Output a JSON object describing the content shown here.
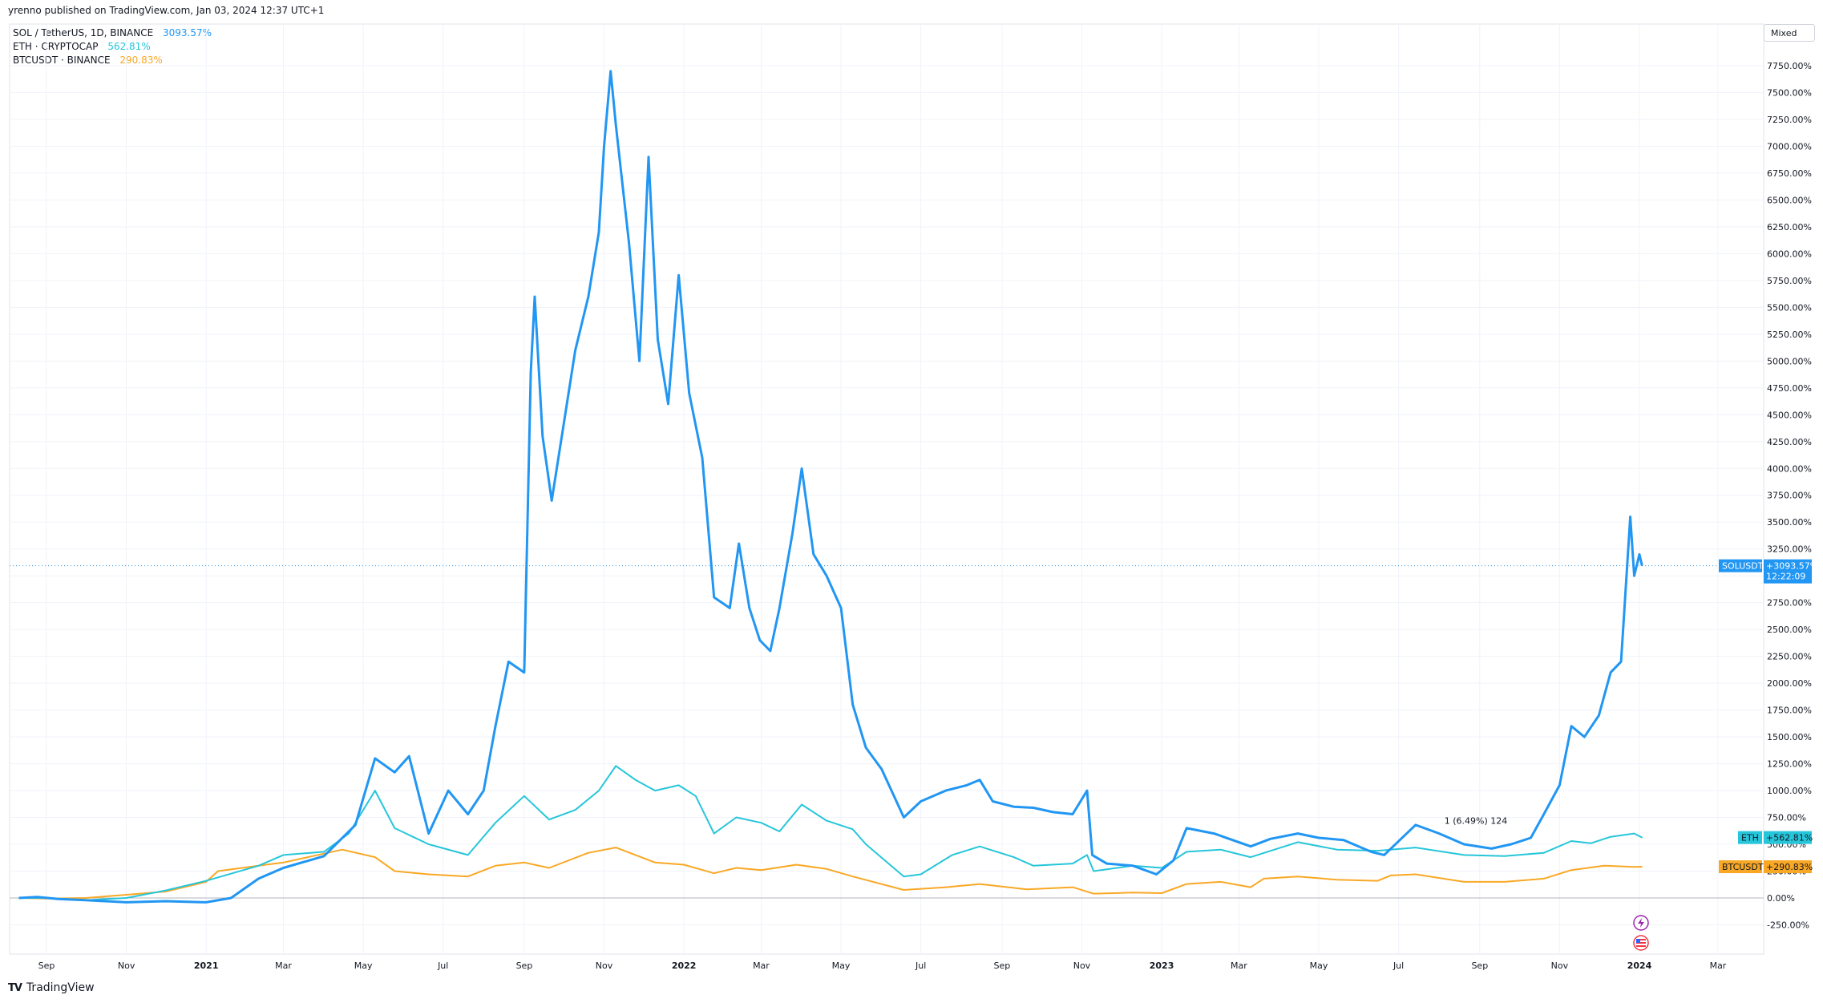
{
  "publisher_text": "yrenno published on TradingView.com, Jan 03, 2024 12:37 UTC+1",
  "scale_mode": "Mixed",
  "footer_brand": "TradingView",
  "legend": [
    {
      "name": "SOL / TetherUS, 1D, BINANCE",
      "value": "3093.57%",
      "color": "#2196f3"
    },
    {
      "name": "ETH · CRYPTOCAP",
      "value": "562.81%",
      "color": "#26c6da"
    },
    {
      "name": "BTCUSDT · BINANCE",
      "value": "290.83%",
      "color": "#f9a825"
    }
  ],
  "price_tags": {
    "sol": {
      "label": "SOLUSDT",
      "value": "+3093.57%",
      "countdown": "12:22:09",
      "color": "#2196f3"
    },
    "eth": {
      "label": "ETH",
      "value": "+562.81%",
      "color": "#26c6da"
    },
    "btc": {
      "label": "BTCUSDT",
      "value": "+290.83%",
      "color": "#f9a825"
    }
  },
  "annotation": "1 (6.49%) 124",
  "icons": [
    "lightning-icon",
    "us-flag-icon"
  ],
  "chart_data": {
    "type": "line",
    "title": "",
    "xlabel": "",
    "ylabel": "",
    "y_unit": "%",
    "ylim": [
      -500,
      7850
    ],
    "grid": true,
    "legend_position": "top-left",
    "x_tick_labels": [
      {
        "date": "2020-09-01",
        "label": "Sep"
      },
      {
        "date": "2020-11-01",
        "label": "Nov"
      },
      {
        "date": "2021-01-01",
        "label": "2021"
      },
      {
        "date": "2021-03-01",
        "label": "Mar"
      },
      {
        "date": "2021-05-01",
        "label": "May"
      },
      {
        "date": "2021-07-01",
        "label": "Jul"
      },
      {
        "date": "2021-09-01",
        "label": "Sep"
      },
      {
        "date": "2021-11-01",
        "label": "Nov"
      },
      {
        "date": "2022-01-01",
        "label": "2022"
      },
      {
        "date": "2022-03-01",
        "label": "Mar"
      },
      {
        "date": "2022-05-01",
        "label": "May"
      },
      {
        "date": "2022-07-01",
        "label": "Jul"
      },
      {
        "date": "2022-09-01",
        "label": "Sep"
      },
      {
        "date": "2022-11-01",
        "label": "Nov"
      },
      {
        "date": "2023-01-01",
        "label": "2023"
      },
      {
        "date": "2023-03-01",
        "label": "Mar"
      },
      {
        "date": "2023-05-01",
        "label": "May"
      },
      {
        "date": "2023-07-01",
        "label": "Jul"
      },
      {
        "date": "2023-09-01",
        "label": "Sep"
      },
      {
        "date": "2023-11-01",
        "label": "Nov"
      },
      {
        "date": "2024-01-01",
        "label": "2024"
      },
      {
        "date": "2024-03-01",
        "label": "Mar"
      }
    ],
    "y_ticks": [
      -250,
      0,
      250,
      500,
      750,
      1000,
      1250,
      1500,
      1750,
      2000,
      2250,
      2500,
      2750,
      3000,
      3250,
      3500,
      3750,
      4000,
      4250,
      4500,
      4750,
      5000,
      5250,
      5500,
      5750,
      6000,
      6250,
      6500,
      6750,
      7000,
      7250,
      7500,
      7750
    ],
    "y_tick_labels": [
      "-250.00%",
      "0.00%",
      "250.00%",
      "500.00%",
      "750.00%",
      "1000.00%",
      "1250.00%",
      "1500.00%",
      "1750.00%",
      "2000.00%",
      "2250.00%",
      "2500.00%",
      "2750.00%",
      "3000.00%",
      "3250.00%",
      "3500.00%",
      "3750.00%",
      "4000.00%",
      "4250.00%",
      "4500.00%",
      "4750.00%",
      "5000.00%",
      "5250.00%",
      "5500.00%",
      "5750.00%",
      "6000.00%",
      "6250.00%",
      "6500.00%",
      "6750.00%",
      "7000.00%",
      "7250.00%",
      "7500.00%",
      "7750.00%"
    ],
    "series": [
      {
        "name": "SOL / TetherUS, 1D, BINANCE",
        "color": "#2196f3",
        "points": [
          [
            "2020-08-11",
            0
          ],
          [
            "2020-08-25",
            10
          ],
          [
            "2020-09-10",
            -10
          ],
          [
            "2020-10-01",
            -20
          ],
          [
            "2020-11-01",
            -40
          ],
          [
            "2020-12-01",
            -30
          ],
          [
            "2021-01-01",
            -40
          ],
          [
            "2021-01-20",
            0
          ],
          [
            "2021-02-10",
            180
          ],
          [
            "2021-03-01",
            280
          ],
          [
            "2021-04-01",
            390
          ],
          [
            "2021-04-25",
            680
          ],
          [
            "2021-05-10",
            1300
          ],
          [
            "2021-05-25",
            1170
          ],
          [
            "2021-06-05",
            1320
          ],
          [
            "2021-06-20",
            600
          ],
          [
            "2021-07-05",
            1000
          ],
          [
            "2021-07-20",
            780
          ],
          [
            "2021-08-01",
            1000
          ],
          [
            "2021-08-10",
            1600
          ],
          [
            "2021-08-20",
            2200
          ],
          [
            "2021-09-01",
            2100
          ],
          [
            "2021-09-06",
            4900
          ],
          [
            "2021-09-09",
            5600
          ],
          [
            "2021-09-15",
            4300
          ],
          [
            "2021-09-22",
            3700
          ],
          [
            "2021-10-01",
            4400
          ],
          [
            "2021-10-10",
            5100
          ],
          [
            "2021-10-20",
            5600
          ],
          [
            "2021-10-28",
            6200
          ],
          [
            "2021-11-01",
            7000
          ],
          [
            "2021-11-06",
            7700
          ],
          [
            "2021-11-10",
            7200
          ],
          [
            "2021-11-20",
            6100
          ],
          [
            "2021-11-28",
            5000
          ],
          [
            "2021-12-05",
            6900
          ],
          [
            "2021-12-12",
            5200
          ],
          [
            "2021-12-20",
            4600
          ],
          [
            "2021-12-28",
            5800
          ],
          [
            "2022-01-05",
            4700
          ],
          [
            "2022-01-15",
            4100
          ],
          [
            "2022-01-24",
            2800
          ],
          [
            "2022-02-05",
            2700
          ],
          [
            "2022-02-12",
            3300
          ],
          [
            "2022-02-20",
            2700
          ],
          [
            "2022-02-28",
            2400
          ],
          [
            "2022-03-08",
            2300
          ],
          [
            "2022-03-15",
            2700
          ],
          [
            "2022-03-25",
            3400
          ],
          [
            "2022-04-01",
            4000
          ],
          [
            "2022-04-10",
            3200
          ],
          [
            "2022-04-20",
            3000
          ],
          [
            "2022-05-01",
            2700
          ],
          [
            "2022-05-10",
            1800
          ],
          [
            "2022-05-20",
            1400
          ],
          [
            "2022-06-01",
            1200
          ],
          [
            "2022-06-18",
            750
          ],
          [
            "2022-07-01",
            900
          ],
          [
            "2022-07-20",
            1000
          ],
          [
            "2022-08-05",
            1050
          ],
          [
            "2022-08-15",
            1100
          ],
          [
            "2022-08-25",
            900
          ],
          [
            "2022-09-10",
            850
          ],
          [
            "2022-09-25",
            840
          ],
          [
            "2022-10-10",
            800
          ],
          [
            "2022-10-25",
            780
          ],
          [
            "2022-11-05",
            1000
          ],
          [
            "2022-11-09",
            400
          ],
          [
            "2022-11-20",
            320
          ],
          [
            "2022-12-10",
            300
          ],
          [
            "2022-12-28",
            220
          ],
          [
            "2023-01-10",
            350
          ],
          [
            "2023-01-20",
            650
          ],
          [
            "2023-02-10",
            600
          ],
          [
            "2023-03-10",
            480
          ],
          [
            "2023-03-25",
            550
          ],
          [
            "2023-04-15",
            600
          ],
          [
            "2023-05-01",
            560
          ],
          [
            "2023-05-20",
            540
          ],
          [
            "2023-06-10",
            430
          ],
          [
            "2023-06-20",
            400
          ],
          [
            "2023-07-14",
            680
          ],
          [
            "2023-08-01",
            600
          ],
          [
            "2023-08-20",
            500
          ],
          [
            "2023-09-10",
            460
          ],
          [
            "2023-09-25",
            500
          ],
          [
            "2023-10-10",
            560
          ],
          [
            "2023-10-20",
            780
          ],
          [
            "2023-11-01",
            1050
          ],
          [
            "2023-11-10",
            1600
          ],
          [
            "2023-11-20",
            1500
          ],
          [
            "2023-12-01",
            1700
          ],
          [
            "2023-12-10",
            2100
          ],
          [
            "2023-12-18",
            2200
          ],
          [
            "2023-12-25",
            3550
          ],
          [
            "2023-12-28",
            3000
          ],
          [
            "2024-01-01",
            3200
          ],
          [
            "2024-01-03",
            3093.57
          ]
        ]
      },
      {
        "name": "ETH · CRYPTOCAP",
        "color": "#26c6da",
        "points": [
          [
            "2020-08-11",
            0
          ],
          [
            "2020-09-01",
            0
          ],
          [
            "2020-10-01",
            -20
          ],
          [
            "2020-11-01",
            0
          ],
          [
            "2020-12-01",
            70
          ],
          [
            "2021-01-01",
            160
          ],
          [
            "2021-02-10",
            300
          ],
          [
            "2021-03-01",
            400
          ],
          [
            "2021-04-01",
            430
          ],
          [
            "2021-04-20",
            600
          ],
          [
            "2021-05-10",
            1000
          ],
          [
            "2021-05-25",
            650
          ],
          [
            "2021-06-20",
            500
          ],
          [
            "2021-07-20",
            400
          ],
          [
            "2021-08-10",
            700
          ],
          [
            "2021-09-01",
            950
          ],
          [
            "2021-09-20",
            730
          ],
          [
            "2021-10-10",
            820
          ],
          [
            "2021-10-28",
            1000
          ],
          [
            "2021-11-10",
            1230
          ],
          [
            "2021-11-25",
            1100
          ],
          [
            "2021-12-10",
            1000
          ],
          [
            "2021-12-28",
            1050
          ],
          [
            "2022-01-10",
            950
          ],
          [
            "2022-01-24",
            600
          ],
          [
            "2022-02-10",
            750
          ],
          [
            "2022-03-01",
            700
          ],
          [
            "2022-03-15",
            620
          ],
          [
            "2022-04-01",
            870
          ],
          [
            "2022-04-20",
            720
          ],
          [
            "2022-05-10",
            640
          ],
          [
            "2022-05-20",
            500
          ],
          [
            "2022-06-18",
            200
          ],
          [
            "2022-07-01",
            220
          ],
          [
            "2022-07-25",
            400
          ],
          [
            "2022-08-15",
            480
          ],
          [
            "2022-09-10",
            380
          ],
          [
            "2022-09-25",
            300
          ],
          [
            "2022-10-25",
            320
          ],
          [
            "2022-11-05",
            400
          ],
          [
            "2022-11-10",
            250
          ],
          [
            "2022-12-10",
            300
          ],
          [
            "2023-01-01",
            280
          ],
          [
            "2023-01-20",
            430
          ],
          [
            "2023-02-15",
            450
          ],
          [
            "2023-03-10",
            380
          ],
          [
            "2023-04-15",
            520
          ],
          [
            "2023-05-15",
            450
          ],
          [
            "2023-06-15",
            440
          ],
          [
            "2023-07-14",
            470
          ],
          [
            "2023-08-20",
            400
          ],
          [
            "2023-09-20",
            390
          ],
          [
            "2023-10-20",
            420
          ],
          [
            "2023-11-10",
            530
          ],
          [
            "2023-11-25",
            510
          ],
          [
            "2023-12-10",
            570
          ],
          [
            "2023-12-28",
            600
          ],
          [
            "2024-01-03",
            562.81
          ]
        ]
      },
      {
        "name": "BTCUSDT · BINANCE",
        "color": "#f9a825",
        "points": [
          [
            "2020-08-11",
            0
          ],
          [
            "2020-09-01",
            -5
          ],
          [
            "2020-10-01",
            0
          ],
          [
            "2020-11-01",
            30
          ],
          [
            "2020-12-01",
            60
          ],
          [
            "2021-01-01",
            150
          ],
          [
            "2021-01-10",
            250
          ],
          [
            "2021-02-10",
            300
          ],
          [
            "2021-03-01",
            330
          ],
          [
            "2021-04-15",
            450
          ],
          [
            "2021-05-10",
            380
          ],
          [
            "2021-05-25",
            250
          ],
          [
            "2021-06-20",
            220
          ],
          [
            "2021-07-20",
            200
          ],
          [
            "2021-08-10",
            300
          ],
          [
            "2021-09-01",
            330
          ],
          [
            "2021-09-20",
            280
          ],
          [
            "2021-10-20",
            420
          ],
          [
            "2021-11-10",
            470
          ],
          [
            "2021-11-25",
            400
          ],
          [
            "2021-12-10",
            330
          ],
          [
            "2022-01-01",
            310
          ],
          [
            "2022-01-24",
            230
          ],
          [
            "2022-02-10",
            280
          ],
          [
            "2022-03-01",
            260
          ],
          [
            "2022-03-28",
            310
          ],
          [
            "2022-04-20",
            270
          ],
          [
            "2022-05-10",
            200
          ],
          [
            "2022-06-18",
            75
          ],
          [
            "2022-07-20",
            100
          ],
          [
            "2022-08-15",
            130
          ],
          [
            "2022-09-20",
            80
          ],
          [
            "2022-10-25",
            100
          ],
          [
            "2022-11-10",
            40
          ],
          [
            "2022-12-10",
            50
          ],
          [
            "2023-01-01",
            45
          ],
          [
            "2023-01-20",
            130
          ],
          [
            "2023-02-15",
            150
          ],
          [
            "2023-03-10",
            100
          ],
          [
            "2023-03-20",
            180
          ],
          [
            "2023-04-15",
            200
          ],
          [
            "2023-05-15",
            170
          ],
          [
            "2023-06-15",
            160
          ],
          [
            "2023-06-25",
            210
          ],
          [
            "2023-07-14",
            220
          ],
          [
            "2023-08-20",
            150
          ],
          [
            "2023-09-20",
            150
          ],
          [
            "2023-10-20",
            180
          ],
          [
            "2023-11-10",
            260
          ],
          [
            "2023-12-05",
            300
          ],
          [
            "2023-12-28",
            290
          ],
          [
            "2024-01-03",
            290.83
          ]
        ]
      }
    ]
  }
}
